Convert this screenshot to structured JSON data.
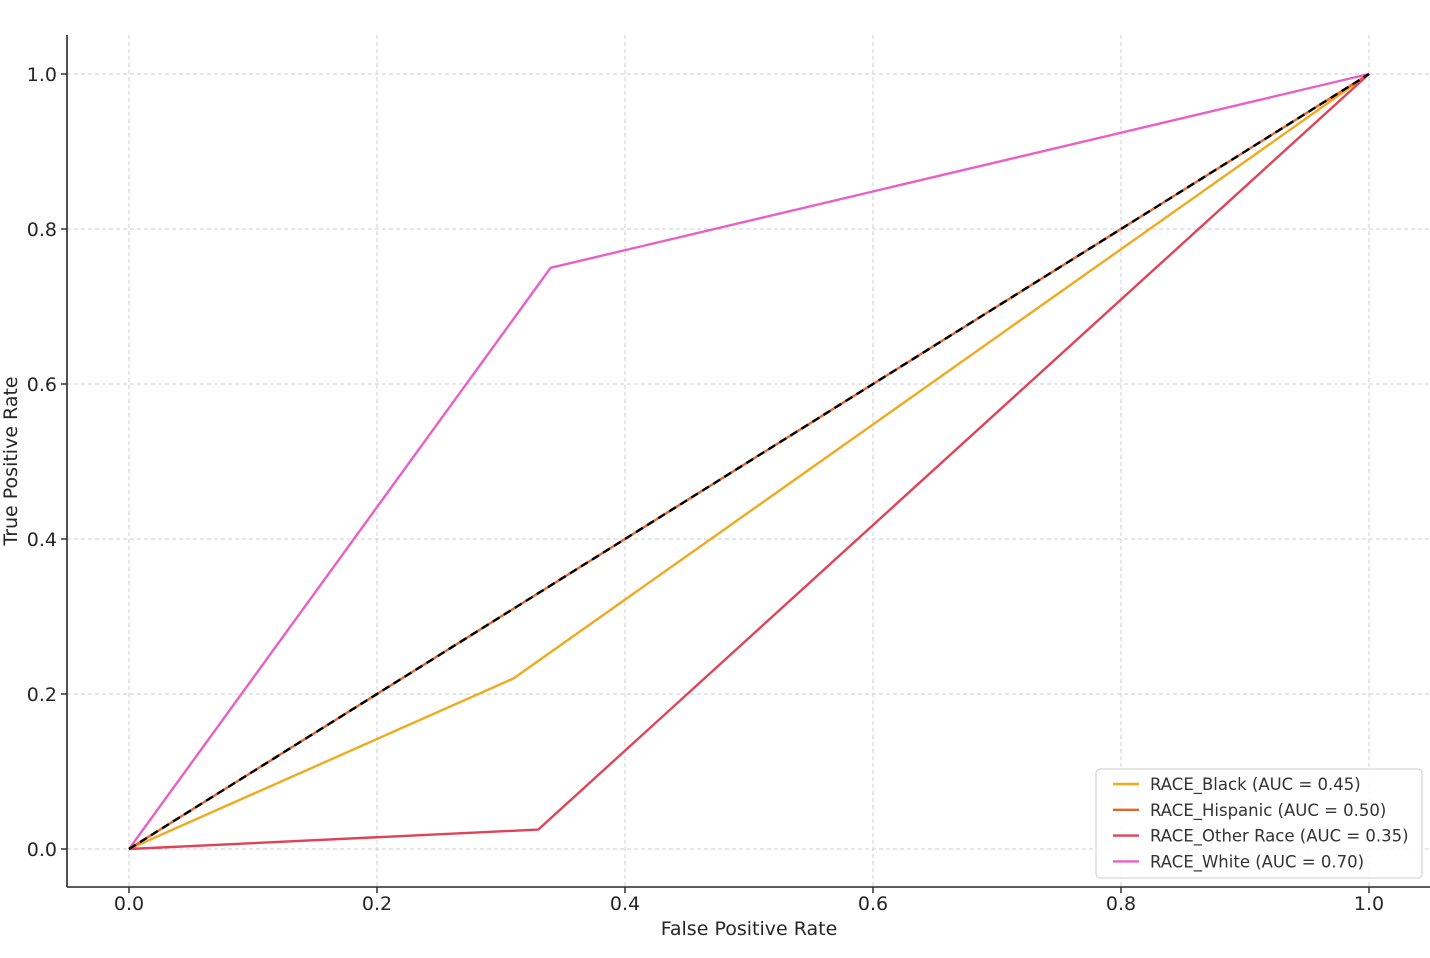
{
  "chart_data": {
    "type": "line",
    "title": "",
    "xlabel": "False Positive Rate",
    "ylabel": "True Positive Rate",
    "xlim": [
      -0.05,
      1.05
    ],
    "ylim": [
      -0.05,
      1.05
    ],
    "x_ticks": [
      "0.0",
      "0.2",
      "0.4",
      "0.6",
      "0.8",
      "1.0"
    ],
    "y_ticks": [
      "0.0",
      "0.2",
      "0.4",
      "0.6",
      "0.8",
      "1.0"
    ],
    "grid": true,
    "legend_position": "lower-right",
    "series": [
      {
        "name": "RACE_Black (AUC = 0.45)",
        "color": "#f0aa1e",
        "x": [
          0.0,
          0.31,
          1.0
        ],
        "y": [
          0.0,
          0.22,
          1.0
        ]
      },
      {
        "name": "RACE_Hispanic (AUC = 0.50)",
        "color": "#e8642c",
        "x": [
          0.0,
          0.5,
          1.0
        ],
        "y": [
          0.0,
          0.5,
          1.0
        ]
      },
      {
        "name": "RACE_Other Race (AUC = 0.35)",
        "color": "#e04358",
        "x": [
          0.0,
          0.33,
          1.0
        ],
        "y": [
          0.0,
          0.025,
          1.0
        ]
      },
      {
        "name": "RACE_White (AUC = 0.70)",
        "color": "#e860c6",
        "x": [
          0.0,
          0.34,
          1.0
        ],
        "y": [
          0.0,
          0.75,
          1.0
        ]
      }
    ],
    "reference_line": {
      "color": "#000000",
      "style": "dashed",
      "x": [
        0.0,
        1.0
      ],
      "y": [
        0.0,
        1.0
      ]
    }
  }
}
